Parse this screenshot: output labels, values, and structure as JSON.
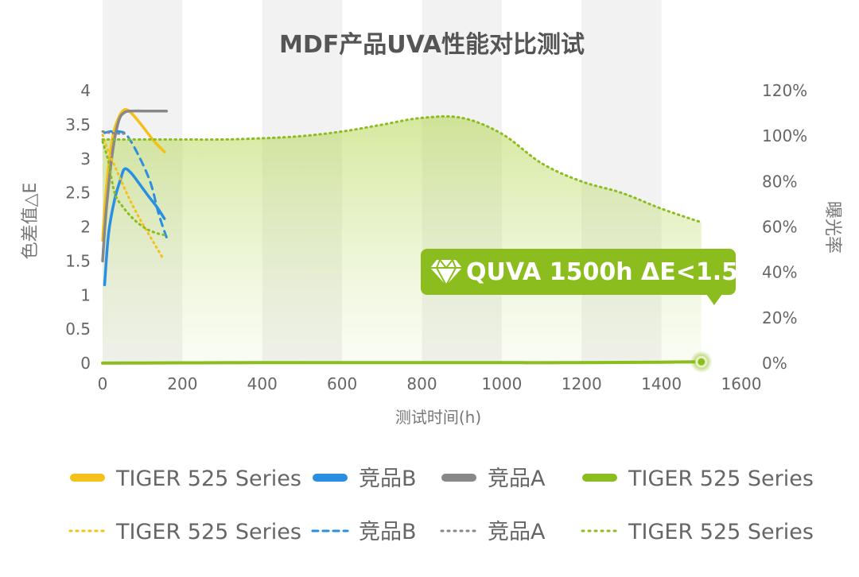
{
  "chart_data": {
    "type": "line",
    "title": "MDF产品UVA性能对比测试",
    "xlabel": "测试时间(h)",
    "ylabel": "色差值△E",
    "y2label": "曝光率",
    "xlim": [
      0,
      1600
    ],
    "ylim": [
      0,
      4
    ],
    "y2lim": [
      0,
      120
    ],
    "x_ticks": [
      "0",
      "200",
      "400",
      "600",
      "800",
      "1000",
      "1200",
      "1400",
      "1600"
    ],
    "y_ticks": [
      "0",
      "0.5",
      "1",
      "1.5",
      "2",
      "2.5",
      "3",
      "3.5",
      "4"
    ],
    "y2_ticks": [
      "0%",
      "20%",
      "40%",
      "60%",
      "80%",
      "100%",
      "120%"
    ],
    "grid": false,
    "legend_position": "bottom",
    "annotation": "QUVA 1500h ΔE<1.5",
    "series": [
      {
        "name": "TIGER 525 Series",
        "style": "solid",
        "axis": "left",
        "color": "#f5c01a",
        "x": [
          0,
          10,
          25,
          40,
          55,
          70,
          90,
          110,
          130,
          155
        ],
        "y": [
          1.8,
          2.6,
          3.3,
          3.6,
          3.72,
          3.68,
          3.55,
          3.4,
          3.25,
          3.1
        ]
      },
      {
        "name": "竞品B",
        "style": "solid",
        "axis": "left",
        "color": "#2a8fe0",
        "x": [
          5,
          15,
          30,
          45,
          55,
          70,
          90,
          115,
          135,
          155
        ],
        "y": [
          1.15,
          1.9,
          2.4,
          2.7,
          2.85,
          2.8,
          2.65,
          2.45,
          2.3,
          2.12
        ]
      },
      {
        "name": "竞品A",
        "style": "solid",
        "axis": "left",
        "color": "#888888",
        "x": [
          0,
          10,
          25,
          40,
          55,
          75,
          100,
          130,
          160
        ],
        "y": [
          1.5,
          2.3,
          3.1,
          3.55,
          3.68,
          3.7,
          3.7,
          3.7,
          3.7
        ]
      },
      {
        "name": "TIGER 525 Series",
        "style": "solid",
        "axis": "right",
        "color": "#8cbd1e",
        "x": [
          0,
          100,
          200,
          300,
          400,
          500,
          600,
          700,
          800,
          900,
          1000,
          1050,
          1100,
          1200,
          1300,
          1400,
          1500
        ],
        "y": [
          0.05,
          0.12,
          0.18,
          0.22,
          0.25,
          0.26,
          0.26,
          0.25,
          0.25,
          0.26,
          0.27,
          0.26,
          0.22,
          0.27,
          0.36,
          0.47,
          0.6
        ]
      },
      {
        "name": "TIGER 525 Series",
        "style": "dotted",
        "axis": "left",
        "color": "#f5c01a",
        "x": [
          0,
          15,
          30,
          60,
          90,
          120,
          150
        ],
        "y": [
          3.35,
          3.1,
          2.9,
          2.5,
          2.15,
          1.85,
          1.55
        ]
      },
      {
        "name": "竞品B",
        "style": "dotted",
        "axis": "left",
        "color": "#2a8fe0",
        "x": [
          5,
          20,
          40,
          60,
          90,
          120,
          140,
          160
        ],
        "y": [
          3.38,
          3.4,
          3.4,
          3.35,
          3.05,
          2.65,
          2.2,
          1.85
        ]
      },
      {
        "name": "竞品A",
        "style": "dotted",
        "axis": "left",
        "color": "#888888",
        "x": [
          0,
          20,
          40,
          60
        ],
        "y": [
          3.4,
          3.38,
          3.37,
          3.37
        ]
      },
      {
        "name": "TIGER 525 Series",
        "style": "dotted",
        "axis": "right",
        "color": "#8cbd1e",
        "x": [
          0,
          100,
          200,
          300,
          400,
          500,
          600,
          700,
          800,
          900,
          1000,
          1100,
          1200,
          1300,
          1400,
          1500
        ],
        "y": [
          98.5,
          98.5,
          98.5,
          98.5,
          99,
          100,
          102,
          105,
          108,
          108,
          101,
          88,
          80,
          75,
          68,
          62
        ]
      }
    ],
    "inset_green_dotted": {
      "x": [
        0,
        15,
        30,
        50,
        80,
        110,
        140,
        160
      ],
      "y": [
        3.25,
        2.95,
        2.5,
        2.3,
        2.1,
        1.97,
        1.9,
        1.88
      ]
    }
  },
  "legend": {
    "row1": [
      {
        "label": "TIGER 525 Series",
        "color": "#f5c01a"
      },
      {
        "label": "竞品B",
        "color": "#2a8fe0"
      },
      {
        "label": "竞品A",
        "color": "#888888"
      },
      {
        "label": "TIGER 525 Series",
        "color": "#8cbd1e"
      }
    ],
    "row2": [
      {
        "label": "TIGER 525 Series",
        "color": "#f5c01a"
      },
      {
        "label": "竞品B",
        "color": "#2a8fe0"
      },
      {
        "label": "竞品A",
        "color": "#888888"
      },
      {
        "label": "TIGER 525 Series",
        "color": "#8cbd1e"
      }
    ]
  },
  "colors": {
    "band": "#f2f2f2",
    "green": "#8cbd1e",
    "callout": "#8cbd1e"
  },
  "icons": {
    "callout_icon": "diamond-icon"
  }
}
